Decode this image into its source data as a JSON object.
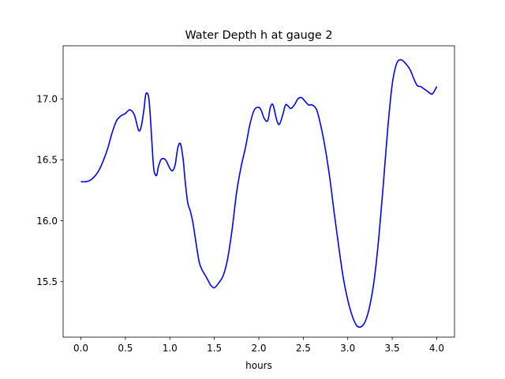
{
  "chart_data": {
    "type": "line",
    "title": "Water Depth h at gauge 2",
    "xlabel": "hours",
    "ylabel": "",
    "xlim": [
      -0.2,
      4.2
    ],
    "ylim": [
      15.045,
      17.435
    ],
    "xticks": [
      0.0,
      0.5,
      1.0,
      1.5,
      2.0,
      2.5,
      3.0,
      3.5,
      4.0
    ],
    "xtick_labels": [
      "0.0",
      "0.5",
      "1.0",
      "1.5",
      "2.0",
      "2.5",
      "3.0",
      "3.5",
      "4.0"
    ],
    "yticks": [
      15.5,
      16.0,
      16.5,
      17.0
    ],
    "ytick_labels": [
      "15.5",
      "16.0",
      "16.5",
      "17.0"
    ],
    "grid": false,
    "legend": "none",
    "series": [
      {
        "color": "#0000ff",
        "x": [
          0.0,
          0.05,
          0.1,
          0.15,
          0.2,
          0.25,
          0.3,
          0.35,
          0.4,
          0.45,
          0.5,
          0.55,
          0.6,
          0.65,
          0.68,
          0.71,
          0.73,
          0.76,
          0.78,
          0.8,
          0.82,
          0.85,
          0.87,
          0.9,
          0.93,
          0.96,
          1.0,
          1.03,
          1.06,
          1.09,
          1.12,
          1.15,
          1.17,
          1.2,
          1.23,
          1.26,
          1.3,
          1.33,
          1.36,
          1.4,
          1.43,
          1.46,
          1.5,
          1.55,
          1.6,
          1.65,
          1.7,
          1.75,
          1.8,
          1.85,
          1.9,
          1.95,
          2.0,
          2.03,
          2.06,
          2.1,
          2.13,
          2.16,
          2.2,
          2.23,
          2.27,
          2.3,
          2.33,
          2.36,
          2.4,
          2.44,
          2.48,
          2.52,
          2.56,
          2.6,
          2.65,
          2.7,
          2.75,
          2.8,
          2.85,
          2.9,
          2.95,
          3.0,
          3.05,
          3.1,
          3.15,
          3.2,
          3.25,
          3.3,
          3.35,
          3.4,
          3.45,
          3.5,
          3.55,
          3.6,
          3.65,
          3.7,
          3.74,
          3.78,
          3.82,
          3.86,
          3.9,
          3.95,
          4.0
        ],
        "y": [
          16.32,
          16.32,
          16.33,
          16.36,
          16.41,
          16.49,
          16.59,
          16.72,
          16.82,
          16.86,
          16.88,
          16.91,
          16.87,
          16.74,
          16.78,
          16.92,
          17.04,
          17.02,
          16.86,
          16.62,
          16.42,
          16.37,
          16.44,
          16.5,
          16.51,
          16.49,
          16.43,
          16.41,
          16.46,
          16.6,
          16.63,
          16.5,
          16.34,
          16.15,
          16.08,
          15.98,
          15.79,
          15.66,
          15.6,
          15.55,
          15.51,
          15.47,
          15.45,
          15.49,
          15.55,
          15.69,
          15.93,
          16.23,
          16.44,
          16.6,
          16.79,
          16.91,
          16.93,
          16.9,
          16.84,
          16.82,
          16.93,
          16.95,
          16.83,
          16.79,
          16.87,
          16.95,
          16.94,
          16.92,
          16.95,
          17.0,
          17.01,
          16.98,
          16.95,
          16.95,
          16.91,
          16.77,
          16.58,
          16.34,
          16.05,
          15.78,
          15.53,
          15.35,
          15.22,
          15.14,
          15.13,
          15.18,
          15.31,
          15.53,
          15.87,
          16.3,
          16.76,
          17.12,
          17.29,
          17.32,
          17.29,
          17.24,
          17.17,
          17.11,
          17.1,
          17.08,
          17.06,
          17.04,
          17.1
        ]
      }
    ]
  }
}
